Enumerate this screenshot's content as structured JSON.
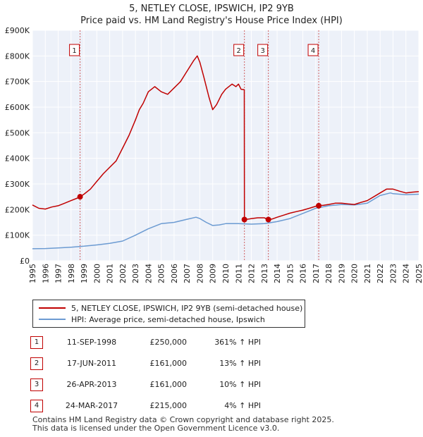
{
  "chart_data": {
    "type": "line",
    "title": "5, NETLEY CLOSE, IPSWICH, IP2 9YB",
    "subtitle": "Price paid vs. HM Land Registry's House Price Index (HPI)",
    "xlim": [
      1995,
      2025
    ],
    "ylim": [
      0,
      900000
    ],
    "y_ticks": [
      0,
      100000,
      200000,
      300000,
      400000,
      500000,
      600000,
      700000,
      800000,
      900000
    ],
    "y_tick_labels": [
      "£0",
      "£100K",
      "£200K",
      "£300K",
      "£400K",
      "£500K",
      "£600K",
      "£700K",
      "£800K",
      "£900K"
    ],
    "x_tick_labels": [
      "1995",
      "1996",
      "1997",
      "1998",
      "1999",
      "2000",
      "2001",
      "2002",
      "2003",
      "2004",
      "2005",
      "2006",
      "2007",
      "2008",
      "2009",
      "2010",
      "2011",
      "2012",
      "2013",
      "2014",
      "2015",
      "2016",
      "2017",
      "2018",
      "2019",
      "2020",
      "2021",
      "2022",
      "2023",
      "2024",
      "2025"
    ],
    "grid": true,
    "series": [
      {
        "name": "5, NETLEY CLOSE, IPSWICH, IP2 9YB (semi-detached house)",
        "color": "#c00000",
        "x": [
          1995.0,
          1995.5,
          1996.0,
          1996.5,
          1997.0,
          1997.5,
          1998.0,
          1998.5,
          1998.7,
          1999.0,
          1999.5,
          2000.0,
          2000.5,
          2001.0,
          2001.5,
          2002.0,
          2002.5,
          2003.0,
          2003.3,
          2003.6,
          2004.0,
          2004.5,
          2005.0,
          2005.5,
          2006.0,
          2006.5,
          2007.0,
          2007.5,
          2007.8,
          2008.0,
          2008.3,
          2008.7,
          2009.0,
          2009.3,
          2009.7,
          2010.0,
          2010.5,
          2010.8,
          2011.0,
          2011.2,
          2011.45,
          2011.46,
          2011.8,
          2012.0,
          2012.5,
          2013.0,
          2013.32,
          2013.6,
          2014.0,
          2014.5,
          2015.0,
          2015.5,
          2016.0,
          2016.5,
          2017.0,
          2017.23,
          2017.6,
          2018.0,
          2018.5,
          2019.0,
          2019.5,
          2020.0,
          2020.5,
          2021.0,
          2021.5,
          2022.0,
          2022.5,
          2023.0,
          2023.5,
          2024.0,
          2024.5,
          2025.0
        ],
        "values": [
          218000,
          205000,
          202000,
          210000,
          215000,
          225000,
          235000,
          245000,
          250000,
          260000,
          280000,
          310000,
          340000,
          365000,
          390000,
          440000,
          490000,
          550000,
          590000,
          615000,
          660000,
          680000,
          660000,
          650000,
          675000,
          700000,
          740000,
          780000,
          800000,
          775000,
          720000,
          640000,
          590000,
          610000,
          650000,
          670000,
          690000,
          680000,
          690000,
          670000,
          668000,
          161000,
          163000,
          165000,
          168000,
          168000,
          161000,
          163000,
          170000,
          178000,
          186000,
          192000,
          198000,
          205000,
          213000,
          215000,
          217000,
          220000,
          225000,
          225000,
          222000,
          220000,
          228000,
          235000,
          250000,
          265000,
          280000,
          280000,
          272000,
          265000,
          268000,
          270000
        ]
      },
      {
        "name": "HPI: Average price, semi-detached house, Ipswich",
        "color": "#6c9bd2",
        "x": [
          1995.0,
          1996.0,
          1997.0,
          1998.0,
          1999.0,
          2000.0,
          2001.0,
          2002.0,
          2003.0,
          2004.0,
          2005.0,
          2006.0,
          2007.0,
          2007.7,
          2008.0,
          2008.5,
          2009.0,
          2009.5,
          2010.0,
          2011.0,
          2012.0,
          2013.0,
          2014.0,
          2015.0,
          2016.0,
          2017.0,
          2018.0,
          2019.0,
          2020.0,
          2021.0,
          2022.0,
          2022.8,
          2023.0,
          2024.0,
          2025.0
        ],
        "values": [
          47000,
          48000,
          50000,
          53000,
          57000,
          62000,
          68000,
          77000,
          100000,
          125000,
          145000,
          150000,
          162000,
          170000,
          165000,
          150000,
          138000,
          140000,
          145000,
          145000,
          143000,
          145000,
          153000,
          165000,
          185000,
          205000,
          215000,
          220000,
          218000,
          225000,
          255000,
          265000,
          262000,
          258000,
          260000
        ]
      }
    ],
    "annotations": [
      {
        "label": "1",
        "x": 1998.7,
        "value": 250000
      },
      {
        "label": "2",
        "x": 2011.46,
        "value": 161000
      },
      {
        "label": "3",
        "x": 2013.32,
        "value": 161000
      },
      {
        "label": "4",
        "x": 2017.23,
        "value": 215000
      }
    ]
  },
  "sales": [
    {
      "num": "1",
      "date": "11-SEP-1998",
      "price": "£250,000",
      "hpi": "361% ↑ HPI"
    },
    {
      "num": "2",
      "date": "17-JUN-2011",
      "price": "£161,000",
      "hpi": "13% ↑ HPI"
    },
    {
      "num": "3",
      "date": "26-APR-2013",
      "price": "£161,000",
      "hpi": "10% ↑ HPI"
    },
    {
      "num": "4",
      "date": "24-MAR-2017",
      "price": "£215,000",
      "hpi": "4% ↑ HPI"
    }
  ],
  "footer": {
    "line1": "Contains HM Land Registry data © Crown copyright and database right 2025.",
    "line2": "This data is licensed under the Open Government Licence v3.0."
  }
}
